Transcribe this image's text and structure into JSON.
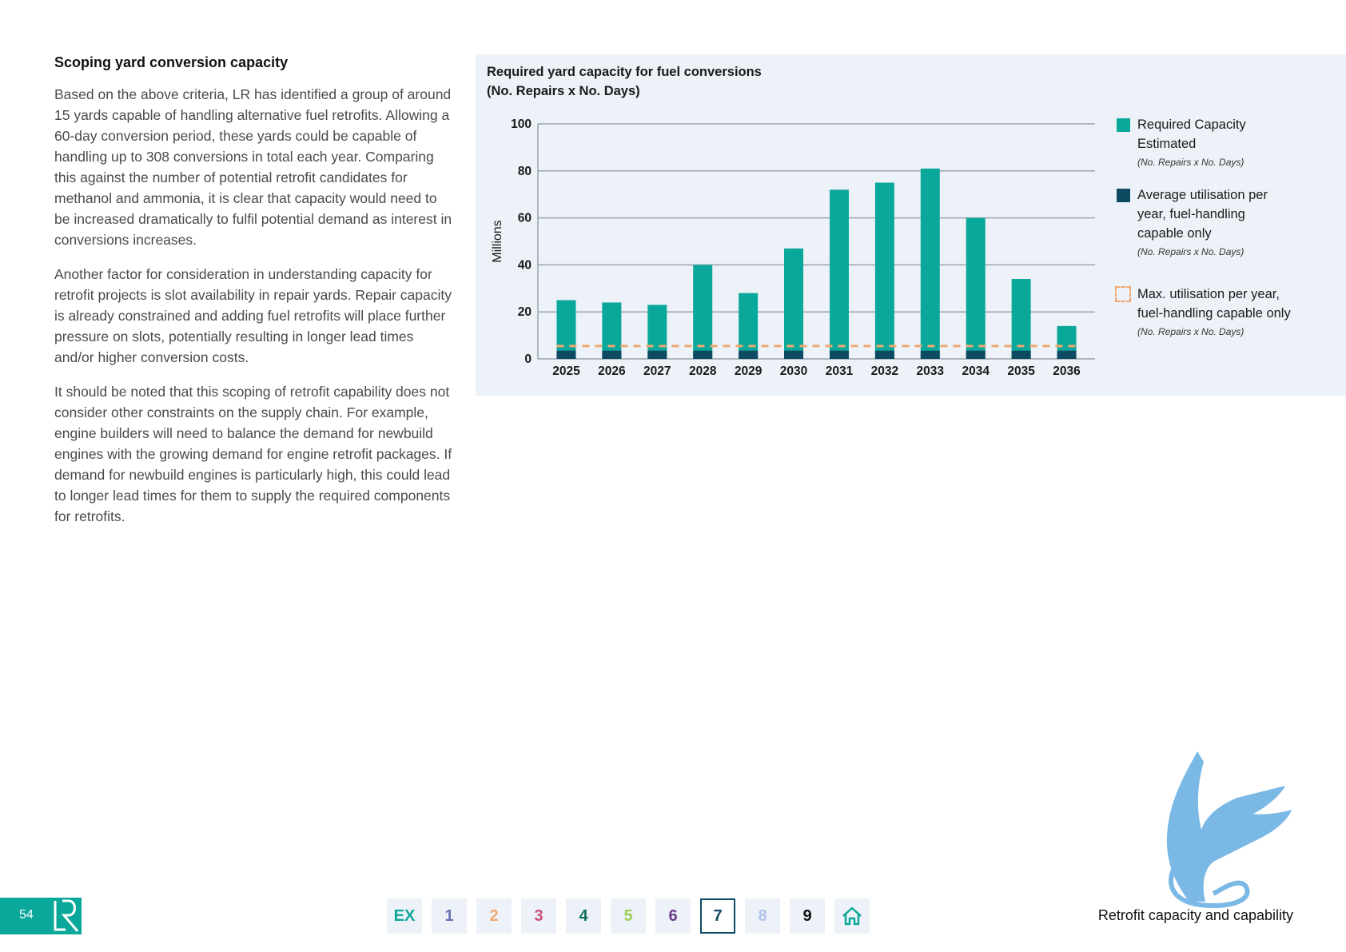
{
  "article": {
    "heading": "Scoping yard conversion capacity",
    "paragraphs": [
      "Based on the above criteria, LR has identified a group of around 15 yards capable of handling alternative fuel retrofits. Allowing a 60-day conversion period, these yards could be capable of handling up to 308 conversions in total each year. Comparing this against the number of potential retrofit candidates for methanol and ammonia, it is clear that capacity would need to be increased dramatically to fulfil potential demand as interest in conversions increases.",
      "Another factor for consideration in understanding capacity for retrofit projects is slot availability in repair yards. Repair capacity is already constrained and adding fuel retrofits will place further pressure on slots, potentially resulting in longer lead times and/or higher conversion costs.",
      "It should be noted that this scoping of retrofit capability does not consider other constraints on the supply chain. For example, engine builders will need to balance the demand for newbuild engines with the growing demand for engine retrofit packages. If demand for newbuild engines is particularly high, this could lead to longer lead times for them to supply the required components for retrofits."
    ]
  },
  "chart_data": {
    "type": "bar",
    "title_lines": [
      "Required yard capacity for fuel conversions",
      "(No. Repairs x No. Days)"
    ],
    "ylabel": "Millions",
    "xlabel": "",
    "ylim": [
      0,
      100
    ],
    "yticks": [
      0,
      20,
      40,
      60,
      80,
      100
    ],
    "grid": true,
    "legend_position": "right",
    "categories": [
      "2025",
      "2026",
      "2027",
      "2028",
      "2029",
      "2030",
      "2031",
      "2032",
      "2033",
      "2034",
      "2035",
      "2036"
    ],
    "series": [
      {
        "name": "Required Capacity Estimated",
        "note": "(No. Repairs x No. Days)",
        "color": "#0aa89a",
        "values": [
          25,
          24,
          23,
          40,
          28,
          47,
          72,
          75,
          81,
          60,
          34,
          14
        ]
      },
      {
        "name": "Average utilisation per year, fuel-handling capable only",
        "note": "(No. Repairs x No. Days)",
        "color": "#0f4a63",
        "values": [
          3.5,
          3.5,
          3.5,
          3.5,
          3.5,
          3.5,
          3.5,
          3.5,
          3.5,
          3.5,
          3.5,
          3.5
        ]
      }
    ],
    "reference_line": {
      "name": "Max. utilisation per year, fuel-handling capable only",
      "note": "(No. Repairs x No. Days)",
      "value": 5.5,
      "color": "#f0a870",
      "style": "dashed"
    }
  },
  "footer": {
    "page_number": "54",
    "title": "Retrofit capacity and capability",
    "nav_tabs": [
      {
        "label": "EX",
        "color": "#0aa89a",
        "active": false
      },
      {
        "label": "1",
        "color": "#6a73b5",
        "active": false
      },
      {
        "label": "2",
        "color": "#f0a870",
        "active": false
      },
      {
        "label": "3",
        "color": "#c94f7c",
        "active": false
      },
      {
        "label": "4",
        "color": "#0f6e5c",
        "active": false
      },
      {
        "label": "5",
        "color": "#9ccf5a",
        "active": false
      },
      {
        "label": "6",
        "color": "#6a3a8a",
        "active": false
      },
      {
        "label": "7",
        "color": "#0f4a63",
        "active": true
      },
      {
        "label": "8",
        "color": "#b0c4e8",
        "active": false
      },
      {
        "label": "9",
        "color": "#111111",
        "active": false
      }
    ],
    "home_icon": "home-icon"
  }
}
